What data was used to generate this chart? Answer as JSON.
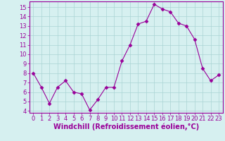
{
  "x": [
    0,
    1,
    2,
    3,
    4,
    5,
    6,
    7,
    8,
    9,
    10,
    11,
    12,
    13,
    14,
    15,
    16,
    17,
    18,
    19,
    20,
    21,
    22,
    23
  ],
  "y": [
    8.0,
    6.5,
    4.8,
    6.5,
    7.2,
    6.0,
    5.8,
    4.1,
    5.2,
    6.5,
    6.5,
    9.3,
    11.0,
    13.2,
    13.5,
    15.3,
    14.8,
    14.5,
    13.3,
    13.0,
    11.6,
    8.5,
    7.2,
    7.8
  ],
  "line_color": "#990099",
  "marker": "D",
  "marker_size": 2.5,
  "bg_color": "#d6f0f0",
  "grid_color": "#aad4d4",
  "xlabel": "Windchill (Refroidissement éolien,°C)",
  "ylim": [
    3.8,
    15.6
  ],
  "xlim": [
    -0.5,
    23.5
  ],
  "yticks": [
    4,
    5,
    6,
    7,
    8,
    9,
    10,
    11,
    12,
    13,
    14,
    15
  ],
  "xticks": [
    0,
    1,
    2,
    3,
    4,
    5,
    6,
    7,
    8,
    9,
    10,
    11,
    12,
    13,
    14,
    15,
    16,
    17,
    18,
    19,
    20,
    21,
    22,
    23
  ],
  "tick_color": "#990099",
  "label_color": "#990099",
  "spine_color": "#990099",
  "xlabel_fontsize": 7.0,
  "tick_fontsize": 6.0
}
